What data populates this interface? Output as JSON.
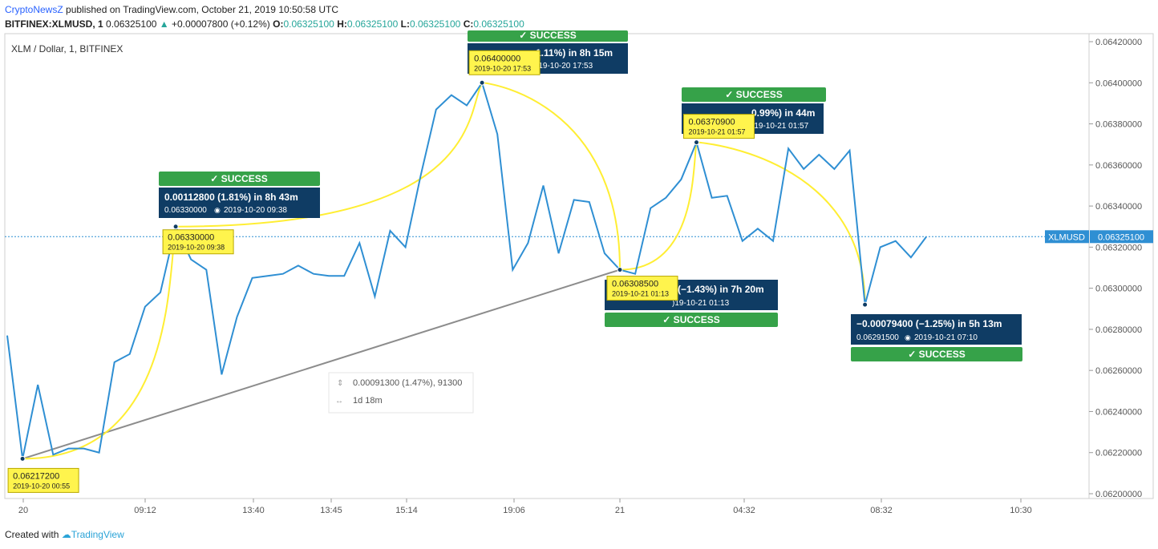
{
  "header": {
    "publisher": "CryptoNewsZ",
    "published_text": "published on TradingView.com, October 21, 2019 10:50:58 UTC",
    "symbol_line": "BITFINEX:XLMUSD, 1",
    "last_price": "0.06325100",
    "change_text": "+0.00007800 (+0.12%)",
    "ohlc": {
      "o_label": "O:",
      "o": "0.06325100",
      "h_label": "H:",
      "h": "0.06325100",
      "l_label": "L:",
      "l": "0.06325100",
      "c_label": "C:",
      "c": "0.06325100"
    }
  },
  "footer": {
    "created_with": "Created with",
    "tradingview": "TradingView"
  },
  "colors": {
    "line": "#2f8fd3",
    "curve": "#ffee33",
    "trend": "#8c8c8c",
    "success": "#36a249",
    "info": "#0f3c64",
    "yellow_label": "#fff44d",
    "price_line": "#2f8fd3",
    "price_tag": "#2f8fd3"
  },
  "chart_data": {
    "type": "line",
    "title": "XLM / Dollar, 1, BITFINEX",
    "ylim": [
      0.062,
      0.0642
    ],
    "yticks": [
      "0.06420000",
      "0.06400000",
      "0.06380000",
      "0.06360000",
      "0.06340000",
      "0.06320000",
      "0.06300000",
      "0.06280000",
      "0.06260000",
      "0.06240000",
      "0.06220000",
      "0.06200000"
    ],
    "xticks": [
      "20",
      "09:12",
      "13:40",
      "13:45",
      "15:14",
      "19:06",
      "21",
      "04:32",
      "08:32",
      "10:30"
    ],
    "price_tag": {
      "label": "XLMUSD",
      "value": "0.06325100",
      "y": 0.063251
    },
    "series": [
      {
        "y": [
          0.06277,
          0.06217,
          0.06253,
          0.06219,
          0.06222,
          0.06222,
          0.0622,
          0.06264,
          0.06268,
          0.06291,
          0.06298,
          0.0633,
          0.06314,
          0.06309,
          0.06258,
          0.06286,
          0.06305,
          0.06306,
          0.06307,
          0.06311,
          0.06307,
          0.06306,
          0.06306,
          0.06322,
          0.06296,
          0.06328,
          0.0632,
          0.06355,
          0.06387,
          0.06394,
          0.06389,
          0.064,
          0.06375,
          0.06309,
          0.06322,
          0.0635,
          0.06317,
          0.06343,
          0.06342,
          0.06317,
          0.06309,
          0.06307,
          0.06339,
          0.06344,
          0.06353,
          0.06371,
          0.06344,
          0.06345,
          0.06323,
          0.06329,
          0.06323,
          0.06368,
          0.06358,
          0.06365,
          0.06358,
          0.06367,
          0.06292,
          0.0632,
          0.06323,
          0.06315,
          0.06325
        ]
      }
    ],
    "points": [
      {
        "i": 1,
        "price": "0.06217200",
        "date": "2019-10-20 00:55"
      },
      {
        "i": 11,
        "price": "0.06330000",
        "date": "2019-10-20 09:38"
      },
      {
        "i": 31,
        "price": "0.06400000",
        "date": "2019-10-20 17:53"
      },
      {
        "i": 40,
        "price": "0.06308500",
        "date": "2019-10-21 01:13"
      },
      {
        "i": 45,
        "price": "0.06370900",
        "date": "2019-10-21 01:57"
      },
      {
        "i": 56,
        "price": "0.06291500",
        "date": "2019-10-21 07:10"
      }
    ],
    "annotations": [
      {
        "success": "✓ SUCCESS",
        "line1": "0.00112800 (1.81%) in 8h 43m",
        "line2_price": "0.06330000",
        "line2_date": "2019-10-20  09:38"
      },
      {
        "success": "✓ SUCCESS",
        "line1": "1.11%) in 8h 15m",
        "line2_date": ")19-10-20  17:53"
      },
      {
        "success": "✓ SUCCESS",
        "line1": "(−1.43%) in 7h 20m",
        "line2_date": ")19-10-21  01:13"
      },
      {
        "success": "✓ SUCCESS",
        "line1": "0.99%) in 44m",
        "line2_date": ")19-10-21  01:57"
      },
      {
        "success": "✓ SUCCESS",
        "line1": "−0.00079400 (−1.25%) in 5h 13m",
        "line2_price": "0.06291500",
        "line2_date": "2019-10-21  07:10"
      }
    ],
    "measure": {
      "line1": "0.00091300 (1.47%), 91300",
      "line2": "1d 18m"
    }
  }
}
